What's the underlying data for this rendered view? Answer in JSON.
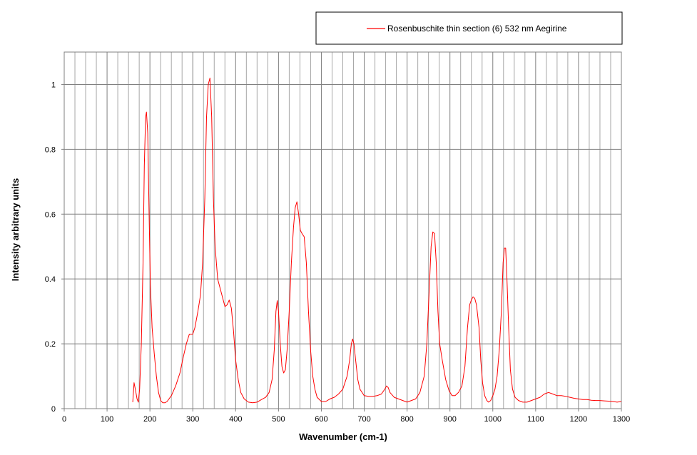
{
  "chart_data": {
    "type": "line",
    "title": "",
    "xlabel": "Wavenumber (cm-1)",
    "ylabel": "Intensity  arbitrary units",
    "xlim": [
      0,
      1300
    ],
    "ylim": [
      0,
      1.1
    ],
    "x_ticks": [
      0,
      100,
      200,
      300,
      400,
      500,
      600,
      700,
      800,
      900,
      1000,
      1100,
      1200,
      1300
    ],
    "x_tick_labels": [
      "0",
      "100",
      "200",
      "300",
      "400",
      "500",
      "600",
      "700",
      "800",
      "900",
      "1000",
      "1100",
      "1200",
      "1300"
    ],
    "y_ticks": [
      0,
      0.2,
      0.4,
      0.6,
      0.8,
      1
    ],
    "y_tick_labels": [
      "0",
      "0.2",
      "0.4",
      "0.6",
      "0.8",
      "1"
    ],
    "x_minor_step": 25,
    "grid": true,
    "legend_position": "top-right",
    "series": [
      {
        "name": "Rosenbuschite  thin section (6) 532 nm  Aegirine",
        "color": "#ff0000",
        "points": [
          [
            160,
            0.02
          ],
          [
            163,
            0.08
          ],
          [
            166,
            0.06
          ],
          [
            170,
            0.03
          ],
          [
            173,
            0.02
          ],
          [
            176,
            0.06
          ],
          [
            180,
            0.2
          ],
          [
            184,
            0.45
          ],
          [
            187,
            0.75
          ],
          [
            190,
            0.9
          ],
          [
            192,
            0.915
          ],
          [
            195,
            0.85
          ],
          [
            198,
            0.6
          ],
          [
            201,
            0.38
          ],
          [
            205,
            0.25
          ],
          [
            210,
            0.17
          ],
          [
            215,
            0.1
          ],
          [
            220,
            0.05
          ],
          [
            225,
            0.025
          ],
          [
            230,
            0.018
          ],
          [
            235,
            0.018
          ],
          [
            240,
            0.022
          ],
          [
            250,
            0.04
          ],
          [
            260,
            0.07
          ],
          [
            270,
            0.11
          ],
          [
            278,
            0.16
          ],
          [
            285,
            0.2
          ],
          [
            292,
            0.23
          ],
          [
            300,
            0.23
          ],
          [
            305,
            0.25
          ],
          [
            312,
            0.3
          ],
          [
            318,
            0.35
          ],
          [
            323,
            0.45
          ],
          [
            328,
            0.65
          ],
          [
            332,
            0.9
          ],
          [
            336,
            1.0
          ],
          [
            340,
            1.02
          ],
          [
            344,
            0.9
          ],
          [
            348,
            0.65
          ],
          [
            352,
            0.5
          ],
          [
            358,
            0.4
          ],
          [
            364,
            0.37
          ],
          [
            370,
            0.34
          ],
          [
            375,
            0.315
          ],
          [
            380,
            0.32
          ],
          [
            385,
            0.335
          ],
          [
            390,
            0.31
          ],
          [
            395,
            0.24
          ],
          [
            400,
            0.15
          ],
          [
            406,
            0.09
          ],
          [
            412,
            0.05
          ],
          [
            420,
            0.03
          ],
          [
            430,
            0.02
          ],
          [
            440,
            0.018
          ],
          [
            450,
            0.02
          ],
          [
            460,
            0.028
          ],
          [
            470,
            0.035
          ],
          [
            478,
            0.05
          ],
          [
            485,
            0.09
          ],
          [
            490,
            0.18
          ],
          [
            494,
            0.3
          ],
          [
            497,
            0.333
          ],
          [
            500,
            0.3
          ],
          [
            504,
            0.2
          ],
          [
            508,
            0.13
          ],
          [
            512,
            0.11
          ],
          [
            516,
            0.12
          ],
          [
            520,
            0.18
          ],
          [
            525,
            0.3
          ],
          [
            530,
            0.45
          ],
          [
            535,
            0.56
          ],
          [
            539,
            0.62
          ],
          [
            543,
            0.638
          ],
          [
            547,
            0.6
          ],
          [
            551,
            0.55
          ],
          [
            555,
            0.54
          ],
          [
            560,
            0.53
          ],
          [
            565,
            0.45
          ],
          [
            570,
            0.3
          ],
          [
            575,
            0.18
          ],
          [
            580,
            0.1
          ],
          [
            585,
            0.06
          ],
          [
            590,
            0.035
          ],
          [
            600,
            0.022
          ],
          [
            610,
            0.022
          ],
          [
            620,
            0.03
          ],
          [
            630,
            0.035
          ],
          [
            640,
            0.045
          ],
          [
            650,
            0.06
          ],
          [
            660,
            0.1
          ],
          [
            666,
            0.15
          ],
          [
            670,
            0.2
          ],
          [
            673,
            0.215
          ],
          [
            676,
            0.2
          ],
          [
            680,
            0.15
          ],
          [
            685,
            0.09
          ],
          [
            690,
            0.06
          ],
          [
            700,
            0.04
          ],
          [
            710,
            0.038
          ],
          [
            720,
            0.038
          ],
          [
            730,
            0.04
          ],
          [
            740,
            0.045
          ],
          [
            748,
            0.06
          ],
          [
            752,
            0.07
          ],
          [
            756,
            0.065
          ],
          [
            760,
            0.05
          ],
          [
            770,
            0.035
          ],
          [
            780,
            0.03
          ],
          [
            790,
            0.025
          ],
          [
            800,
            0.02
          ],
          [
            810,
            0.025
          ],
          [
            820,
            0.03
          ],
          [
            830,
            0.05
          ],
          [
            840,
            0.1
          ],
          [
            846,
            0.2
          ],
          [
            851,
            0.35
          ],
          [
            856,
            0.5
          ],
          [
            860,
            0.545
          ],
          [
            864,
            0.54
          ],
          [
            868,
            0.45
          ],
          [
            872,
            0.3
          ],
          [
            876,
            0.2
          ],
          [
            882,
            0.15
          ],
          [
            890,
            0.09
          ],
          [
            898,
            0.055
          ],
          [
            905,
            0.04
          ],
          [
            912,
            0.04
          ],
          [
            920,
            0.05
          ],
          [
            928,
            0.07
          ],
          [
            935,
            0.13
          ],
          [
            941,
            0.25
          ],
          [
            946,
            0.32
          ],
          [
            950,
            0.335
          ],
          [
            954,
            0.345
          ],
          [
            958,
            0.34
          ],
          [
            962,
            0.32
          ],
          [
            968,
            0.25
          ],
          [
            972,
            0.15
          ],
          [
            976,
            0.08
          ],
          [
            981,
            0.04
          ],
          [
            986,
            0.025
          ],
          [
            990,
            0.02
          ],
          [
            995,
            0.025
          ],
          [
            1000,
            0.04
          ],
          [
            1005,
            0.06
          ],
          [
            1010,
            0.1
          ],
          [
            1015,
            0.18
          ],
          [
            1020,
            0.3
          ],
          [
            1024,
            0.45
          ],
          [
            1027,
            0.495
          ],
          [
            1030,
            0.495
          ],
          [
            1033,
            0.4
          ],
          [
            1037,
            0.25
          ],
          [
            1041,
            0.12
          ],
          [
            1046,
            0.06
          ],
          [
            1052,
            0.035
          ],
          [
            1060,
            0.025
          ],
          [
            1070,
            0.02
          ],
          [
            1080,
            0.02
          ],
          [
            1090,
            0.025
          ],
          [
            1100,
            0.03
          ],
          [
            1110,
            0.035
          ],
          [
            1120,
            0.045
          ],
          [
            1130,
            0.05
          ],
          [
            1140,
            0.045
          ],
          [
            1150,
            0.04
          ],
          [
            1160,
            0.04
          ],
          [
            1170,
            0.038
          ],
          [
            1180,
            0.035
          ],
          [
            1190,
            0.032
          ],
          [
            1200,
            0.03
          ],
          [
            1210,
            0.028
          ],
          [
            1220,
            0.028
          ],
          [
            1230,
            0.026
          ],
          [
            1240,
            0.025
          ],
          [
            1250,
            0.025
          ],
          [
            1260,
            0.024
          ],
          [
            1270,
            0.023
          ],
          [
            1280,
            0.022
          ],
          [
            1290,
            0.02
          ],
          [
            1300,
            0.022
          ]
        ]
      }
    ]
  }
}
